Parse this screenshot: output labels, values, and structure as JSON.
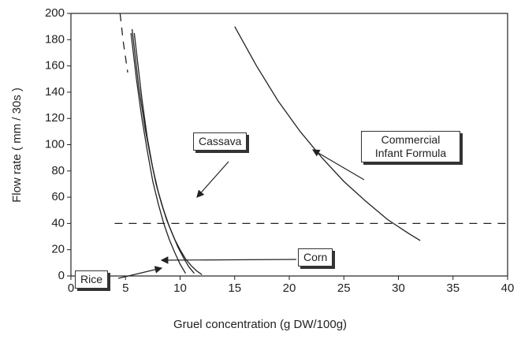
{
  "chart_data": {
    "type": "line",
    "xlabel": "Gruel concentration (g DW/100g)",
    "ylabel": "Flow rate  ( mm / 30s )",
    "xlim": [
      0,
      40
    ],
    "xticks": [
      0,
      5,
      10,
      15,
      20,
      25,
      30,
      35,
      40
    ],
    "ylim": [
      0,
      200
    ],
    "yticks": [
      0,
      20,
      40,
      60,
      80,
      100,
      120,
      140,
      160,
      180,
      200
    ],
    "series": [
      {
        "name": "Rice",
        "color": "#222222",
        "x": [
          5.5,
          6,
          6.5,
          7,
          7.5,
          8,
          8.5,
          9,
          9.5,
          10,
          10.5
        ],
        "values": [
          185,
          150,
          120,
          95,
          72,
          55,
          40,
          28,
          18,
          9,
          2
        ]
      },
      {
        "name": "Cassava",
        "color": "#222222",
        "x": [
          5.6,
          6.2,
          6.8,
          7.3,
          7.8,
          8.3,
          8.8,
          9.3,
          9.8,
          10.3,
          10.8,
          11.3
        ],
        "values": [
          188,
          145,
          112,
          90,
          70,
          55,
          42,
          32,
          22,
          14,
          7,
          2
        ]
      },
      {
        "name": "Corn",
        "color": "#222222",
        "x": [
          5.8,
          6.5,
          7,
          7.5,
          8,
          8.5,
          9,
          9.5,
          10,
          10.5,
          11,
          11.5,
          12
        ],
        "values": [
          185,
          135,
          105,
          82,
          64,
          50,
          38,
          28,
          20,
          13,
          8,
          4,
          1
        ]
      },
      {
        "name": "Commercial Infant Formula",
        "color": "#222222",
        "x": [
          15,
          17,
          19,
          21,
          23,
          25,
          27,
          29,
          31,
          32
        ],
        "values": [
          190,
          160,
          133,
          110,
          90,
          72,
          57,
          43,
          32,
          27
        ]
      },
      {
        "color": "#222222",
        "dashed": true,
        "x": [
          4.5,
          4.8,
          5.2
        ],
        "values": [
          200,
          178,
          155
        ]
      },
      {
        "color": "#222222",
        "dashed": true,
        "x": [
          4,
          40
        ],
        "values": [
          40,
          40
        ]
      }
    ]
  }
}
